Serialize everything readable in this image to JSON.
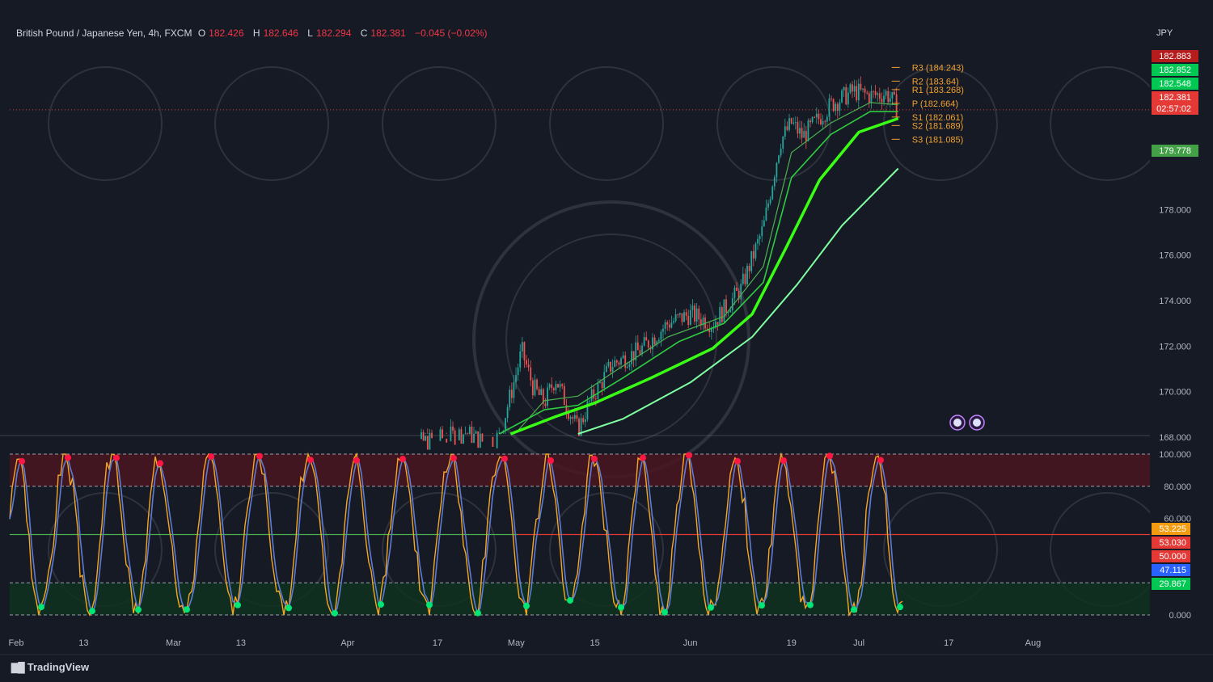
{
  "header": {
    "symbol": "British Pound / Japanese Yen, 4h, FXCM",
    "o_label": "O",
    "o_value": "182.426",
    "h_label": "H",
    "h_value": "182.646",
    "l_label": "L",
    "l_value": "182.294",
    "c_label": "C",
    "c_value": "182.381",
    "change": "−0.045 (−0.02%)"
  },
  "currency": "JPY",
  "footer": {
    "brand": "TradingView"
  },
  "colors": {
    "background": "#161a25",
    "candle_up": "#26a69a",
    "ema_green": "#4caf50",
    "ema_bright": "#39ff14",
    "stoch_blue": "#5b7bd5",
    "stoch_orange": "#f5a623",
    "overbought_zone": "#4a1620",
    "oversold_zone": "#0f3320",
    "pivot_orange": "#f0a030",
    "dot_red": "#ff1744",
    "dot_green": "#00e676"
  },
  "price_labels": [
    {
      "text": "182.883",
      "bg": "#b71c1c"
    },
    {
      "text": "182.852",
      "bg": "#00c853"
    },
    {
      "text": "182.548",
      "bg": "#00c853"
    },
    {
      "text": "182.381",
      "bg": "#e53935"
    },
    {
      "text": "02:57:02",
      "bg": "#e53935"
    },
    {
      "text": "179.778",
      "bg": "#43a047"
    }
  ],
  "osc_labels": [
    {
      "text": "53.225",
      "bg": "#f39c12"
    },
    {
      "text": "53.030",
      "bg": "#e53935"
    },
    {
      "text": "50.000",
      "bg": "#e53935"
    },
    {
      "text": "47.115",
      "bg": "#2962ff"
    },
    {
      "text": "29.867",
      "bg": "#00c853"
    }
  ],
  "chart_data": [
    {
      "type": "line",
      "title": "British Pound / Japanese Yen, 4h, FXCM",
      "x_ticks": [
        "Feb",
        "13",
        "Mar",
        "13",
        "Apr",
        "17",
        "May",
        "15",
        "Jun",
        "19",
        "Jul",
        "17",
        "Aug"
      ],
      "y_ticks": [
        "178.000",
        "176.000",
        "174.000",
        "172.000",
        "170.000",
        "168.000"
      ],
      "ylim": [
        167.5,
        185.5
      ],
      "price_path": [
        [
          "Apr 10",
          167.6
        ],
        [
          "Apr 17",
          167.9
        ],
        [
          "Apr 22",
          168.2
        ],
        [
          "Apr 25",
          167.8
        ],
        [
          "Apr 28",
          168.0
        ],
        [
          "May 1",
          170.8
        ],
        [
          "May 2",
          171.8
        ],
        [
          "May 4",
          170.2
        ],
        [
          "May 6",
          169.5
        ],
        [
          "May 8",
          170.6
        ],
        [
          "May 10",
          169.4
        ],
        [
          "May 12",
          168.3
        ],
        [
          "May 14",
          169.5
        ],
        [
          "May 18",
          171.2
        ],
        [
          "May 23",
          171.8
        ],
        [
          "May 28",
          173.0
        ],
        [
          "Jun 1",
          173.4
        ],
        [
          "Jun 5",
          173.0
        ],
        [
          "Jun 10",
          174.5
        ],
        [
          "Jun 14",
          177.2
        ],
        [
          "Jun 17",
          181.0
        ],
        [
          "Jun 19",
          181.8
        ],
        [
          "Jun 21",
          181.2
        ],
        [
          "Jun 26",
          182.6
        ],
        [
          "Jun 30",
          183.2
        ],
        [
          "Jul 3",
          183.0
        ],
        [
          "Jul 6",
          183.1
        ],
        [
          "Jul 8",
          182.4
        ]
      ],
      "emas": [
        {
          "values": [
            [
              "May 1",
              168.2
            ],
            [
              "May 6",
              169.6
            ],
            [
              "May 12",
              169.8
            ],
            [
              "May 18",
              170.8
            ],
            [
              "May 28",
              172.4
            ],
            [
              "Jun 7",
              173.3
            ],
            [
              "Jun 14",
              175.5
            ],
            [
              "Jun 19",
              180.5
            ],
            [
              "Jun 26",
              181.8
            ],
            [
              "Jul 3",
              182.7
            ],
            [
              "Jul 8",
              182.6
            ]
          ]
        },
        {
          "values": [
            [
              "Apr 28",
              167.5
            ],
            [
              "May 6",
              169.2
            ],
            [
              "May 12",
              169.4
            ],
            [
              "May 20",
              170.6
            ],
            [
              "May 30",
              172.2
            ],
            [
              "Jun 7",
              173.0
            ],
            [
              "Jun 14",
              174.8
            ],
            [
              "Jun 19",
              179.4
            ],
            [
              "Jun 26",
              181.3
            ],
            [
              "Jul 3",
              182.3
            ],
            [
              "Jul 8",
              182.3
            ]
          ]
        },
        {
          "values": [
            [
              "Apr 30",
              167.5
            ],
            [
              "May 8",
              168.9
            ],
            [
              "May 15",
              169.5
            ],
            [
              "May 25",
              170.6
            ],
            [
              "Jun 5",
              171.9
            ],
            [
              "Jun 12",
              173.4
            ],
            [
              "Jun 18",
              176.3
            ],
            [
              "Jun 24",
              179.3
            ],
            [
              "Jul 1",
              181.4
            ],
            [
              "Jul 8",
              182.0
            ]
          ]
        },
        {
          "values": [
            [
              "May 12",
              167.5
            ],
            [
              "May 20",
              168.8
            ],
            [
              "Jun 1",
              170.4
            ],
            [
              "Jun 12",
              172.4
            ],
            [
              "Jun 20",
              174.7
            ],
            [
              "Jun 28",
              177.3
            ],
            [
              "Jul 8",
              179.8
            ]
          ]
        }
      ],
      "pivots": [
        {
          "label": "R3 (184.243)",
          "value": 184.243
        },
        {
          "label": "R2 (183.64)",
          "value": 183.64
        },
        {
          "label": "R1 (183.268)",
          "value": 183.268
        },
        {
          "label": "P (182.664)",
          "value": 182.664
        },
        {
          "label": "S1 (182.061)",
          "value": 182.061
        },
        {
          "label": "S2 (181.689)",
          "value": 181.689
        },
        {
          "label": "S3 (181.085)",
          "value": 181.085
        }
      ],
      "last_price": 182.381
    },
    {
      "type": "line",
      "y_ticks": [
        "100.000",
        "80.000",
        "60.000",
        "0.000"
      ],
      "ylim": [
        0,
        100
      ],
      "levels": [
        100,
        80,
        50,
        20,
        0
      ],
      "overbought": [
        80,
        100
      ],
      "oversold": [
        0,
        20
      ],
      "last": {
        "k": 53.225,
        "d": 47.115,
        "signal": 53.03
      }
    }
  ]
}
